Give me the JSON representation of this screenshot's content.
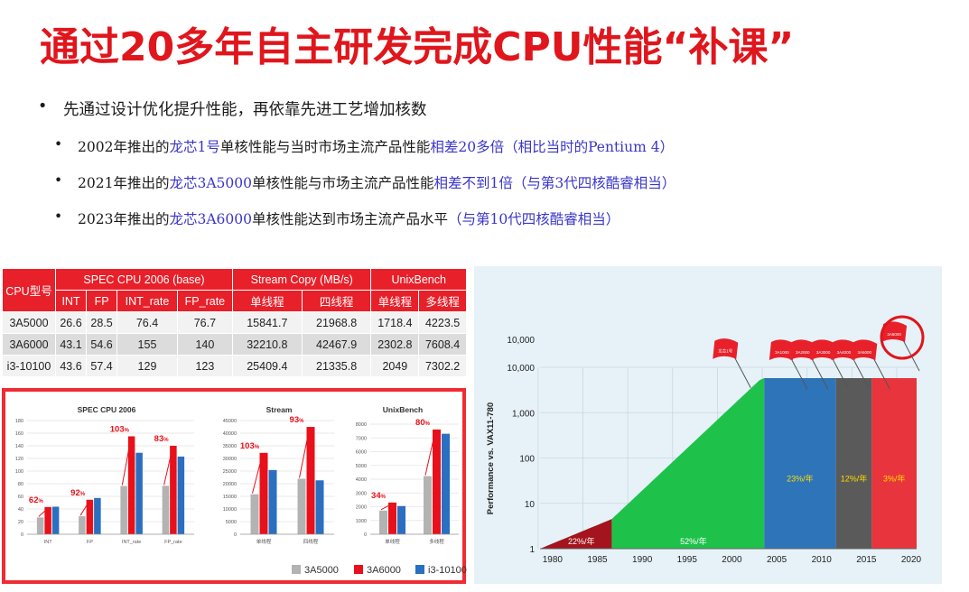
{
  "title": "通过20多年自主研发完成CPU性能“补课”",
  "bullets": {
    "main": "先通过设计优化提升性能，再依靠先进工艺增加核数",
    "items": [
      {
        "pre": "2002年推出的",
        "hl1": "龙芯1号",
        "mid": "单核性能与当时市场主流产品性能",
        "hl2": "相差20多倍（相比当时的Pentium 4）"
      },
      {
        "pre": "2021年推出的",
        "hl1": "龙芯3A5000",
        "mid": "单核性能与市场主流产品性能",
        "hl2": "相差不到1倍（与第3代四核酷睿相当）"
      },
      {
        "pre": "2023年推出的",
        "hl1": "龙芯3A6000",
        "mid": "单核性能达到市场主流产品水平",
        "hl2": "（与第10代四核酷睿相当）"
      }
    ]
  },
  "table": {
    "col_cpu": "CPU型号",
    "group1": "SPEC CPU 2006 (base)",
    "group2": "Stream Copy (MB/s)",
    "group3": "UnixBench",
    "subheaders": [
      "INT",
      "FP",
      "INT_rate",
      "FP_rate",
      "单线程",
      "四线程",
      "单线程",
      "多线程"
    ],
    "rows": [
      [
        "3A5000",
        "26.6",
        "28.5",
        "76.4",
        "76.7",
        "15841.7",
        "21968.8",
        "1718.4",
        "4223.5"
      ],
      [
        "3A6000",
        "43.1",
        "54.6",
        "155",
        "140",
        "32210.8",
        "42467.9",
        "2302.8",
        "7608.4"
      ],
      [
        "i3-10100",
        "43.6",
        "57.4",
        "129",
        "123",
        "25409.4",
        "21335.8",
        "2049",
        "7302.2"
      ]
    ]
  },
  "colors": {
    "brand_red": "#e0161d",
    "series_3A5000": "#b3b3b3",
    "series_3A6000": "#e8101a",
    "series_i3": "#2a6fc0"
  },
  "chart_data": [
    {
      "type": "bar",
      "title": "SPEC CPU 2006",
      "categories": [
        "INT",
        "FP",
        "INT_rate",
        "FP_rate"
      ],
      "ylim": [
        0,
        180
      ],
      "yticks": [
        "0",
        "20",
        "40",
        "60",
        "80",
        "100",
        "120",
        "140",
        "160",
        "180"
      ],
      "series": [
        {
          "name": "3A5000",
          "values": [
            26.6,
            28.5,
            76.4,
            76.7
          ]
        },
        {
          "name": "3A6000",
          "values": [
            43.1,
            54.6,
            155,
            140
          ]
        },
        {
          "name": "i3-10100",
          "values": [
            43.6,
            57.4,
            129,
            123
          ]
        }
      ],
      "annotations": [
        {
          "category": "INT",
          "num": "62",
          "unit": "%"
        },
        {
          "category": "FP",
          "num": "92",
          "unit": "%"
        },
        {
          "category": "INT_rate",
          "num": "103",
          "unit": "%"
        },
        {
          "category": "FP_rate",
          "num": "83",
          "unit": "%"
        }
      ]
    },
    {
      "type": "bar",
      "title": "Stream",
      "categories": [
        "单线程",
        "四线程"
      ],
      "ylim": [
        0,
        45000
      ],
      "yticks": [
        "0",
        "5000",
        "10000",
        "15000",
        "20000",
        "25000",
        "30000",
        "35000",
        "40000",
        "45000"
      ],
      "series": [
        {
          "name": "3A5000",
          "values": [
            15841.7,
            21968.8
          ]
        },
        {
          "name": "3A6000",
          "values": [
            32210.8,
            42467.9
          ]
        },
        {
          "name": "i3-10100",
          "values": [
            25409.4,
            21335.8
          ]
        }
      ],
      "annotations": [
        {
          "category": "单线程",
          "num": "103",
          "unit": "%"
        },
        {
          "category": "四线程",
          "num": "93",
          "unit": "%"
        }
      ]
    },
    {
      "type": "bar",
      "title": "UnixBench",
      "categories": [
        "单线程",
        "多线程"
      ],
      "ylim": [
        0,
        8000
      ],
      "yticks": [
        "0",
        "1000",
        "2000",
        "3000",
        "4000",
        "5000",
        "6000",
        "7000",
        "8000"
      ],
      "series": [
        {
          "name": "3A5000",
          "values": [
            1718.4,
            4223.5
          ]
        },
        {
          "name": "3A6000",
          "values": [
            2302.8,
            7608.4
          ]
        },
        {
          "name": "i3-10100",
          "values": [
            2049,
            7302.2
          ]
        }
      ],
      "annotations": [
        {
          "category": "单线程",
          "num": "34",
          "unit": "%"
        },
        {
          "category": "多线程",
          "num": "80",
          "unit": "%"
        }
      ]
    },
    {
      "type": "area",
      "ylabel": "Performance vs. VAX11-780",
      "yscale": "log",
      "ylim": [
        1,
        10000
      ],
      "yticks": [
        "1",
        "10",
        "100",
        "1,000",
        "10,000",
        "10,000"
      ],
      "xticks": [
        "1980",
        "1985",
        "1990",
        "1995",
        "2000",
        "2005",
        "2010",
        "2015",
        "2020"
      ],
      "segments": [
        {
          "label": "22%/年",
          "start": 1978,
          "end": 1986,
          "color": "#a3141e"
        },
        {
          "label": "52%/年",
          "start": 1986,
          "end": 2003,
          "color": "#1ec24a"
        },
        {
          "label": "23%/年",
          "start": 2003,
          "end": 2011,
          "color": "#2e74b9"
        },
        {
          "label": "12%/年",
          "start": 2011,
          "end": 2015,
          "color": "#5a5a5a"
        },
        {
          "label": "3%/年",
          "start": 2015,
          "end": 2020,
          "color": "#e8343c"
        }
      ],
      "flags": [
        {
          "label": "龙芯1号",
          "year": "2002"
        },
        {
          "label": "3A1000",
          "year": ""
        },
        {
          "label": "3A2000",
          "year": ""
        },
        {
          "label": "3A3000",
          "year": ""
        },
        {
          "label": "3A4000",
          "year": ""
        },
        {
          "label": "3A5000",
          "year": ""
        },
        {
          "label": "3A6000",
          "year": ""
        }
      ]
    }
  ],
  "legend": [
    "3A5000",
    "3A6000",
    "i3-10100"
  ]
}
